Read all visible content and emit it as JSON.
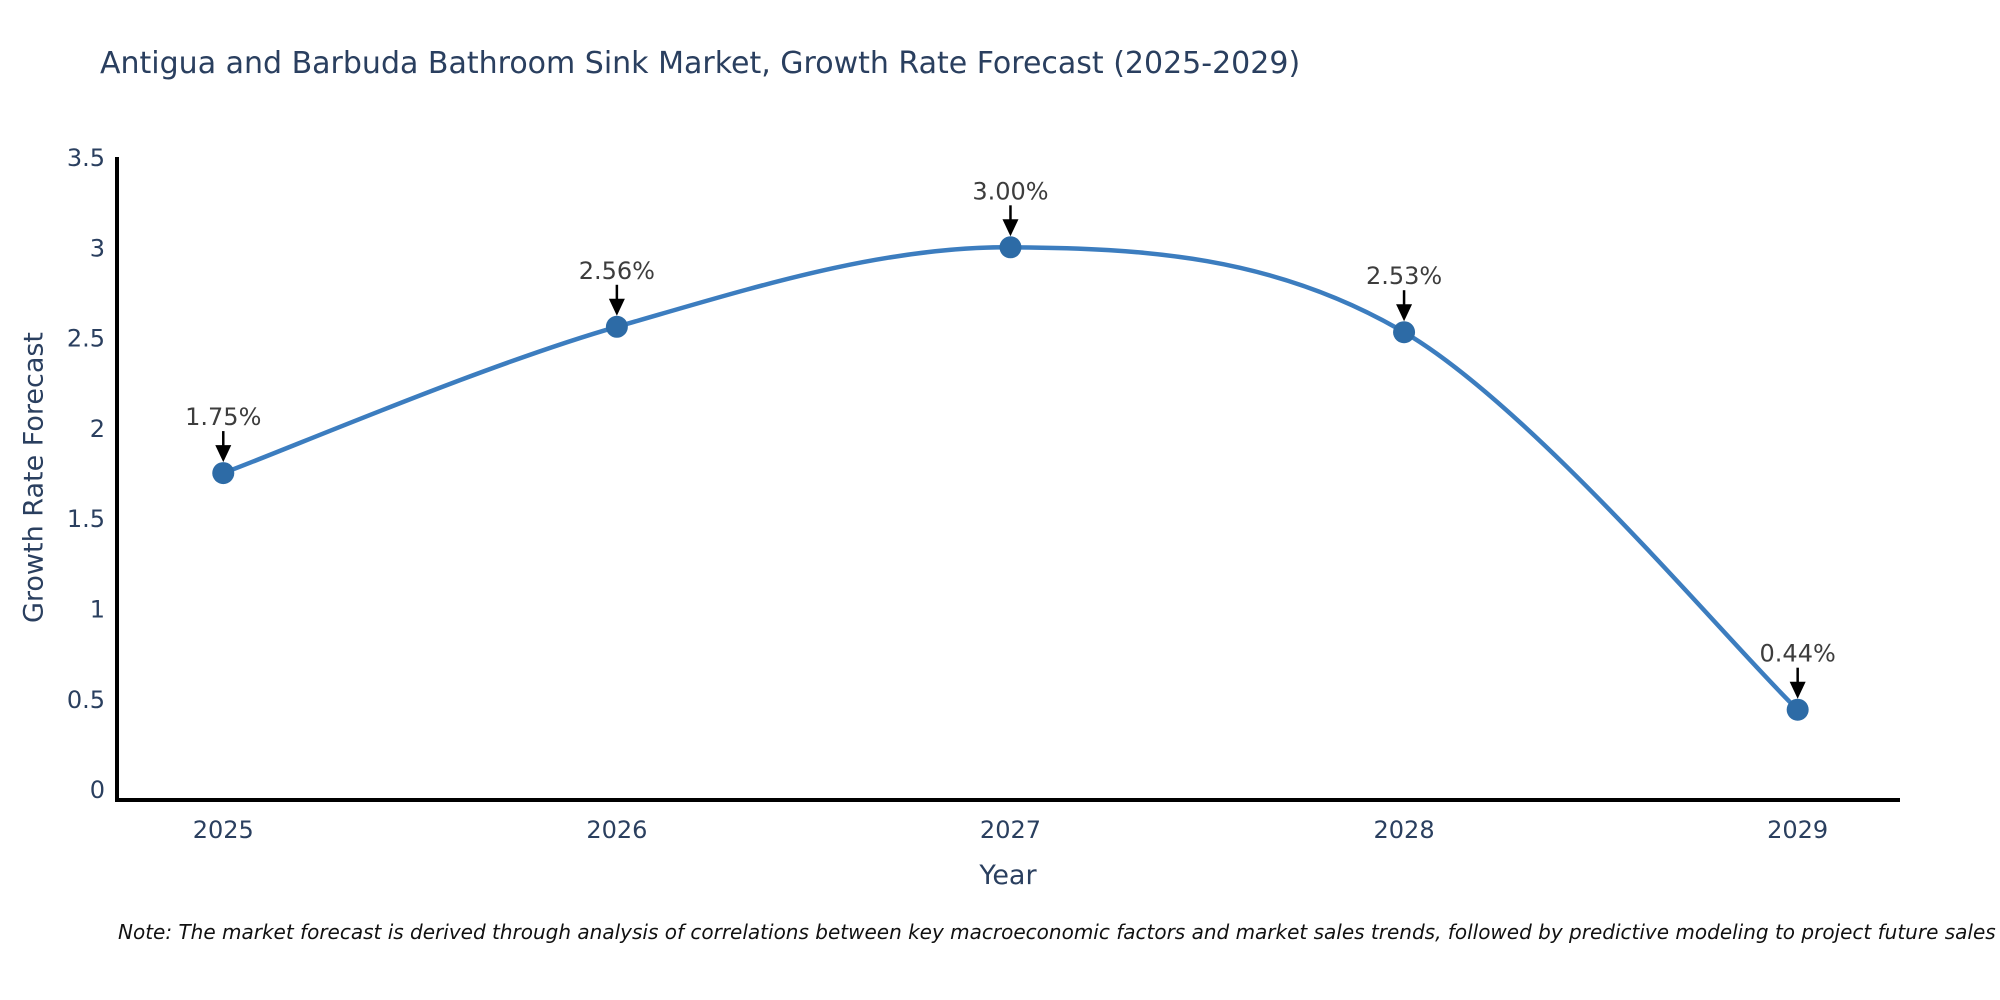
{
  "note": "Note: The market forecast is derived through analysis of correlations between key macroeconomic factors and market sales trends, followed by predictive modeling to project future sales",
  "chart_data": {
    "type": "line",
    "title": "Antigua and Barbuda Bathroom Sink Market, Growth Rate Forecast (2025-2029)",
    "xlabel": "Year",
    "ylabel": "Growth Rate Forecast",
    "categories": [
      "2025",
      "2026",
      "2027",
      "2028",
      "2029"
    ],
    "x": [
      2025,
      2026,
      2027,
      2028,
      2029
    ],
    "values": [
      1.75,
      2.56,
      3.0,
      2.53,
      0.44
    ],
    "point_labels": [
      "1.75%",
      "2.56%",
      "3.00%",
      "2.53%",
      "0.44%"
    ],
    "y_ticks": [
      0,
      0.5,
      1,
      1.5,
      2,
      2.5,
      3,
      3.5
    ],
    "y_tick_labels": [
      "0",
      "0.5",
      "1",
      "1.5",
      "2",
      "2.5",
      "3",
      "3.5"
    ],
    "ylim": [
      -0.06,
      3.5
    ],
    "xlim": [
      2024.73,
      2029.26
    ],
    "grid": false,
    "legend": "none",
    "smooth": true,
    "annotation_style": "value-label-with-down-arrow",
    "colors": {
      "line": "#3c7dbf",
      "marker": "#2d6ba6",
      "axis": "#000000",
      "tick_text": "#2a3f5f",
      "annotation_text": "#3d3d3d",
      "arrow": "#000000",
      "background": "#ffffff"
    }
  }
}
